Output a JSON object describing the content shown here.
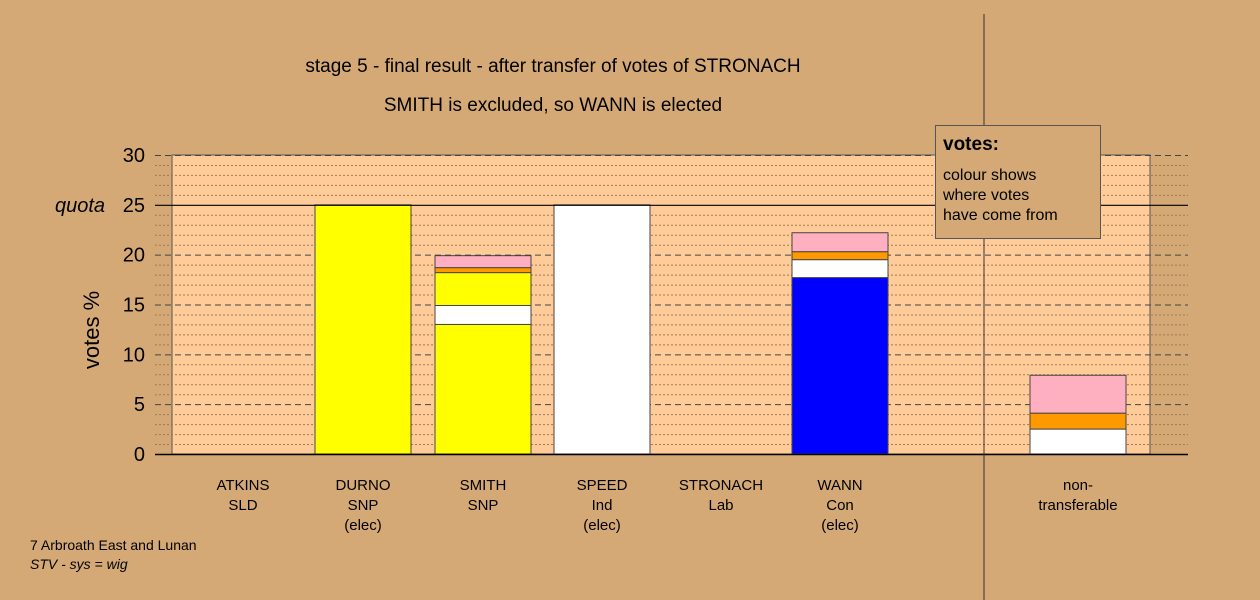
{
  "chart_data": {
    "type": "bar",
    "stacked": true,
    "title": "stage 5 - final result - after transfer of votes of STRONACH",
    "subtitle": "SMITH is excluded, so WANN is elected",
    "ylabel": "votes %",
    "ylim": [
      0,
      30
    ],
    "yticks": [
      0,
      5,
      10,
      15,
      20,
      25,
      30
    ],
    "quota": {
      "label": "quota",
      "value": 25
    },
    "grid": true,
    "categories": [
      {
        "name": "ATKINS",
        "party": "SLD",
        "status": ""
      },
      {
        "name": "DURNO",
        "party": "SNP",
        "status": "(elec)"
      },
      {
        "name": "SMITH",
        "party": "SNP",
        "status": ""
      },
      {
        "name": "SPEED",
        "party": "Ind",
        "status": "(elec)"
      },
      {
        "name": "STRONACH",
        "party": "Lab",
        "status": ""
      },
      {
        "name": "WANN",
        "party": "Con",
        "status": "(elec)"
      },
      {
        "name": "non-",
        "party": "transferable",
        "status": ""
      }
    ],
    "stacks": [
      [],
      [
        {
          "color": "#ffff00",
          "value": 25
        }
      ],
      [
        {
          "color": "#ffff00",
          "value": 13.0
        },
        {
          "color": "#ffffff",
          "value": 1.9
        },
        {
          "color": "#ffff00",
          "value": 3.3
        },
        {
          "color": "#ff9900",
          "value": 0.5
        },
        {
          "color": "#ffb0c0",
          "value": 1.2
        }
      ],
      [
        {
          "color": "#ffffff",
          "value": 25
        }
      ],
      [],
      [
        {
          "color": "#0000ff",
          "value": 17.7
        },
        {
          "color": "#ffffff",
          "value": 1.8
        },
        {
          "color": "#ff9900",
          "value": 0.8
        },
        {
          "color": "#ffb0c0",
          "value": 1.9
        }
      ],
      [
        {
          "color": "#ffffff",
          "value": 2.5
        },
        {
          "color": "#ff9900",
          "value": 1.6
        },
        {
          "color": "#ffb0c0",
          "value": 3.8
        }
      ]
    ]
  },
  "legend": {
    "title": "votes:",
    "lines": [
      "colour shows",
      "where votes",
      "have come from"
    ]
  },
  "footer": {
    "line1": "7 Arbroath East and Lunan",
    "line2": "STV - sys = wig"
  },
  "colors": {
    "background": "#d4a976",
    "plot_fill": "#ffcc99"
  }
}
